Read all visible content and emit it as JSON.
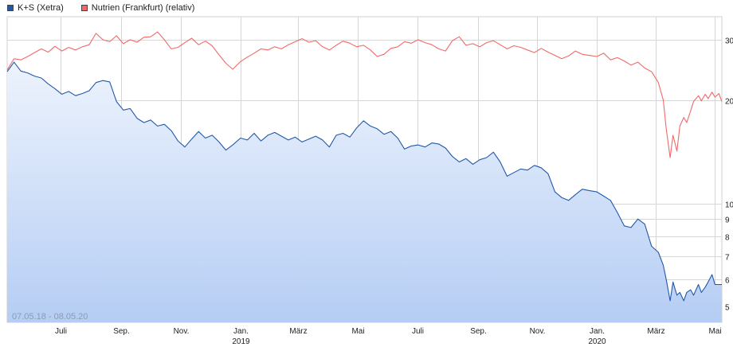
{
  "legend": [
    {
      "label": "K+S (Xetra)",
      "color": "#2159a8"
    },
    {
      "label": "Nutrien (Frankfurt) (relativ)",
      "color": "#f06a6a"
    }
  ],
  "date_range": "07.05.18 - 08.05.20",
  "chart_data": {
    "type": "line",
    "y_scale": "log",
    "ylim": [
      4.5,
      35
    ],
    "y_ticks": [
      5,
      6,
      7,
      8,
      9,
      10,
      20,
      30
    ],
    "x_range": [
      "2018-05-07",
      "2020-05-08"
    ],
    "x_ticks": [
      {
        "date": "2018-07-01",
        "label": "Juli",
        "year": ""
      },
      {
        "date": "2018-09-01",
        "label": "Sep.",
        "year": ""
      },
      {
        "date": "2018-11-01",
        "label": "Nov.",
        "year": ""
      },
      {
        "date": "2019-01-01",
        "label": "Jan.",
        "year": "2019"
      },
      {
        "date": "2019-03-01",
        "label": "März",
        "year": ""
      },
      {
        "date": "2019-05-01",
        "label": "Mai",
        "year": ""
      },
      {
        "date": "2019-07-01",
        "label": "Juli",
        "year": ""
      },
      {
        "date": "2019-09-01",
        "label": "Sep.",
        "year": ""
      },
      {
        "date": "2019-11-01",
        "label": "Nov.",
        "year": ""
      },
      {
        "date": "2020-01-01",
        "label": "Jan.",
        "year": "2020"
      },
      {
        "date": "2020-03-01",
        "label": "März",
        "year": ""
      },
      {
        "date": "2020-05-01",
        "label": "Mai",
        "year": ""
      }
    ],
    "grid": true,
    "legend_position": "top-left",
    "series": [
      {
        "name": "K+S (Xetra)",
        "color": "#2159a8",
        "fill": true,
        "points": [
          [
            "2018-05-07",
            24.2
          ],
          [
            "2018-05-14",
            25.8
          ],
          [
            "2018-05-21",
            24.3
          ],
          [
            "2018-05-28",
            24.0
          ],
          [
            "2018-06-04",
            23.5
          ],
          [
            "2018-06-11",
            23.2
          ],
          [
            "2018-06-18",
            22.3
          ],
          [
            "2018-06-25",
            21.6
          ],
          [
            "2018-07-02",
            20.8
          ],
          [
            "2018-07-09",
            21.2
          ],
          [
            "2018-07-16",
            20.6
          ],
          [
            "2018-07-23",
            20.9
          ],
          [
            "2018-07-30",
            21.3
          ],
          [
            "2018-08-06",
            22.5
          ],
          [
            "2018-08-13",
            22.8
          ],
          [
            "2018-08-20",
            22.6
          ],
          [
            "2018-08-27",
            19.8
          ],
          [
            "2018-09-03",
            18.7
          ],
          [
            "2018-09-10",
            18.9
          ],
          [
            "2018-09-17",
            17.7
          ],
          [
            "2018-09-24",
            17.2
          ],
          [
            "2018-10-01",
            17.5
          ],
          [
            "2018-10-08",
            16.8
          ],
          [
            "2018-10-15",
            17.0
          ],
          [
            "2018-10-22",
            16.3
          ],
          [
            "2018-10-29",
            15.2
          ],
          [
            "2018-11-05",
            14.6
          ],
          [
            "2018-11-12",
            15.4
          ],
          [
            "2018-11-19",
            16.2
          ],
          [
            "2018-11-26",
            15.5
          ],
          [
            "2018-12-03",
            15.8
          ],
          [
            "2018-12-10",
            15.1
          ],
          [
            "2018-12-17",
            14.3
          ],
          [
            "2018-12-24",
            14.8
          ],
          [
            "2019-01-01",
            15.5
          ],
          [
            "2019-01-08",
            15.3
          ],
          [
            "2019-01-15",
            16.0
          ],
          [
            "2019-01-22",
            15.2
          ],
          [
            "2019-01-29",
            15.8
          ],
          [
            "2019-02-05",
            16.1
          ],
          [
            "2019-02-12",
            15.7
          ],
          [
            "2019-02-19",
            15.3
          ],
          [
            "2019-02-26",
            15.6
          ],
          [
            "2019-03-05",
            15.1
          ],
          [
            "2019-03-12",
            15.4
          ],
          [
            "2019-03-19",
            15.7
          ],
          [
            "2019-03-26",
            15.3
          ],
          [
            "2019-04-02",
            14.6
          ],
          [
            "2019-04-09",
            15.8
          ],
          [
            "2019-04-16",
            16.0
          ],
          [
            "2019-04-23",
            15.6
          ],
          [
            "2019-04-30",
            16.6
          ],
          [
            "2019-05-07",
            17.4
          ],
          [
            "2019-05-14",
            16.8
          ],
          [
            "2019-05-21",
            16.5
          ],
          [
            "2019-05-28",
            15.9
          ],
          [
            "2019-06-04",
            16.2
          ],
          [
            "2019-06-11",
            15.5
          ],
          [
            "2019-06-18",
            14.4
          ],
          [
            "2019-06-25",
            14.7
          ],
          [
            "2019-07-02",
            14.8
          ],
          [
            "2019-07-09",
            14.6
          ],
          [
            "2019-07-16",
            15.0
          ],
          [
            "2019-07-23",
            14.9
          ],
          [
            "2019-07-30",
            14.5
          ],
          [
            "2019-08-06",
            13.7
          ],
          [
            "2019-08-13",
            13.2
          ],
          [
            "2019-08-20",
            13.5
          ],
          [
            "2019-08-27",
            13.0
          ],
          [
            "2019-09-03",
            13.4
          ],
          [
            "2019-09-10",
            13.6
          ],
          [
            "2019-09-17",
            14.1
          ],
          [
            "2019-09-24",
            13.2
          ],
          [
            "2019-10-01",
            12.0
          ],
          [
            "2019-10-08",
            12.3
          ],
          [
            "2019-10-15",
            12.6
          ],
          [
            "2019-10-22",
            12.5
          ],
          [
            "2019-10-29",
            12.9
          ],
          [
            "2019-11-05",
            12.7
          ],
          [
            "2019-11-12",
            12.2
          ],
          [
            "2019-11-19",
            10.8
          ],
          [
            "2019-11-26",
            10.4
          ],
          [
            "2019-12-03",
            10.2
          ],
          [
            "2019-12-10",
            10.6
          ],
          [
            "2019-12-17",
            11.0
          ],
          [
            "2019-12-24",
            10.9
          ],
          [
            "2020-01-01",
            10.8
          ],
          [
            "2020-01-08",
            10.5
          ],
          [
            "2020-01-15",
            10.2
          ],
          [
            "2020-01-22",
            9.4
          ],
          [
            "2020-01-29",
            8.6
          ],
          [
            "2020-02-05",
            8.5
          ],
          [
            "2020-02-12",
            9.0
          ],
          [
            "2020-02-19",
            8.7
          ],
          [
            "2020-02-26",
            7.5
          ],
          [
            "2020-03-04",
            7.2
          ],
          [
            "2020-03-09",
            6.6
          ],
          [
            "2020-03-12",
            6.0
          ],
          [
            "2020-03-16",
            5.2
          ],
          [
            "2020-03-19",
            5.9
          ],
          [
            "2020-03-23",
            5.4
          ],
          [
            "2020-03-26",
            5.5
          ],
          [
            "2020-03-30",
            5.2
          ],
          [
            "2020-04-02",
            5.5
          ],
          [
            "2020-04-06",
            5.6
          ],
          [
            "2020-04-09",
            5.4
          ],
          [
            "2020-04-14",
            5.8
          ],
          [
            "2020-04-17",
            5.5
          ],
          [
            "2020-04-21",
            5.7
          ],
          [
            "2020-04-24",
            5.9
          ],
          [
            "2020-04-28",
            6.2
          ],
          [
            "2020-05-01",
            5.8
          ],
          [
            "2020-05-05",
            5.8
          ],
          [
            "2020-05-08",
            5.8
          ]
        ]
      },
      {
        "name": "Nutrien (Frankfurt) (relativ)",
        "color": "#f06a6a",
        "fill": false,
        "points": [
          [
            "2018-05-07",
            24.5
          ],
          [
            "2018-05-14",
            26.4
          ],
          [
            "2018-05-21",
            26.2
          ],
          [
            "2018-05-28",
            26.8
          ],
          [
            "2018-06-04",
            27.5
          ],
          [
            "2018-06-11",
            28.2
          ],
          [
            "2018-06-18",
            27.6
          ],
          [
            "2018-06-25",
            28.7
          ],
          [
            "2018-07-02",
            27.8
          ],
          [
            "2018-07-09",
            28.5
          ],
          [
            "2018-07-16",
            28.0
          ],
          [
            "2018-07-23",
            28.6
          ],
          [
            "2018-07-30",
            29.0
          ],
          [
            "2018-08-06",
            31.3
          ],
          [
            "2018-08-13",
            30.0
          ],
          [
            "2018-08-20",
            29.6
          ],
          [
            "2018-08-27",
            30.8
          ],
          [
            "2018-09-03",
            29.2
          ],
          [
            "2018-09-10",
            30.0
          ],
          [
            "2018-09-17",
            29.5
          ],
          [
            "2018-09-24",
            30.5
          ],
          [
            "2018-10-01",
            30.6
          ],
          [
            "2018-10-08",
            31.6
          ],
          [
            "2018-10-15",
            30.0
          ],
          [
            "2018-10-22",
            28.2
          ],
          [
            "2018-10-29",
            28.5
          ],
          [
            "2018-11-05",
            29.4
          ],
          [
            "2018-11-12",
            30.3
          ],
          [
            "2018-11-19",
            29.0
          ],
          [
            "2018-11-26",
            29.7
          ],
          [
            "2018-12-03",
            28.8
          ],
          [
            "2018-12-10",
            27.1
          ],
          [
            "2018-12-17",
            25.6
          ],
          [
            "2018-12-24",
            24.6
          ],
          [
            "2019-01-01",
            25.9
          ],
          [
            "2019-01-08",
            26.7
          ],
          [
            "2019-01-15",
            27.4
          ],
          [
            "2019-01-22",
            28.2
          ],
          [
            "2019-01-29",
            28.0
          ],
          [
            "2019-02-05",
            28.6
          ],
          [
            "2019-02-12",
            28.2
          ],
          [
            "2019-02-19",
            29.0
          ],
          [
            "2019-02-26",
            29.6
          ],
          [
            "2019-03-05",
            30.2
          ],
          [
            "2019-03-12",
            29.5
          ],
          [
            "2019-03-19",
            29.8
          ],
          [
            "2019-03-26",
            28.6
          ],
          [
            "2019-04-02",
            28.0
          ],
          [
            "2019-04-09",
            28.9
          ],
          [
            "2019-04-16",
            29.7
          ],
          [
            "2019-04-23",
            29.3
          ],
          [
            "2019-04-30",
            28.6
          ],
          [
            "2019-05-07",
            28.9
          ],
          [
            "2019-05-14",
            28.0
          ],
          [
            "2019-05-21",
            26.8
          ],
          [
            "2019-05-28",
            27.2
          ],
          [
            "2019-06-04",
            28.3
          ],
          [
            "2019-06-11",
            28.6
          ],
          [
            "2019-06-18",
            29.6
          ],
          [
            "2019-06-25",
            29.3
          ],
          [
            "2019-07-02",
            30.0
          ],
          [
            "2019-07-09",
            29.4
          ],
          [
            "2019-07-16",
            29.0
          ],
          [
            "2019-07-23",
            28.2
          ],
          [
            "2019-07-30",
            27.8
          ],
          [
            "2019-08-06",
            29.8
          ],
          [
            "2019-08-13",
            30.6
          ],
          [
            "2019-08-20",
            28.9
          ],
          [
            "2019-08-27",
            29.2
          ],
          [
            "2019-09-03",
            28.6
          ],
          [
            "2019-09-10",
            29.4
          ],
          [
            "2019-09-17",
            29.8
          ],
          [
            "2019-09-24",
            29.0
          ],
          [
            "2019-10-01",
            28.2
          ],
          [
            "2019-10-08",
            28.8
          ],
          [
            "2019-10-15",
            28.5
          ],
          [
            "2019-10-22",
            28.0
          ],
          [
            "2019-10-29",
            27.5
          ],
          [
            "2019-11-05",
            28.3
          ],
          [
            "2019-11-12",
            27.6
          ],
          [
            "2019-11-19",
            27.0
          ],
          [
            "2019-11-26",
            26.4
          ],
          [
            "2019-12-03",
            26.9
          ],
          [
            "2019-12-10",
            27.8
          ],
          [
            "2019-12-17",
            27.2
          ],
          [
            "2019-12-24",
            27.0
          ],
          [
            "2020-01-01",
            26.8
          ],
          [
            "2020-01-08",
            27.4
          ],
          [
            "2020-01-15",
            26.2
          ],
          [
            "2020-01-22",
            26.6
          ],
          [
            "2020-01-29",
            26.0
          ],
          [
            "2020-02-05",
            25.3
          ],
          [
            "2020-02-12",
            25.8
          ],
          [
            "2020-02-19",
            24.8
          ],
          [
            "2020-02-26",
            24.2
          ],
          [
            "2020-03-04",
            22.5
          ],
          [
            "2020-03-09",
            20.0
          ],
          [
            "2020-03-12",
            16.5
          ],
          [
            "2020-03-16",
            13.6
          ],
          [
            "2020-03-19",
            15.8
          ],
          [
            "2020-03-23",
            14.2
          ],
          [
            "2020-03-26",
            16.8
          ],
          [
            "2020-03-30",
            17.8
          ],
          [
            "2020-04-02",
            17.2
          ],
          [
            "2020-04-06",
            18.6
          ],
          [
            "2020-04-09",
            19.8
          ],
          [
            "2020-04-14",
            20.6
          ],
          [
            "2020-04-17",
            19.9
          ],
          [
            "2020-04-21",
            20.8
          ],
          [
            "2020-04-24",
            20.2
          ],
          [
            "2020-04-28",
            21.1
          ],
          [
            "2020-05-01",
            20.4
          ],
          [
            "2020-05-05",
            20.9
          ],
          [
            "2020-05-08",
            19.8
          ]
        ]
      }
    ]
  }
}
